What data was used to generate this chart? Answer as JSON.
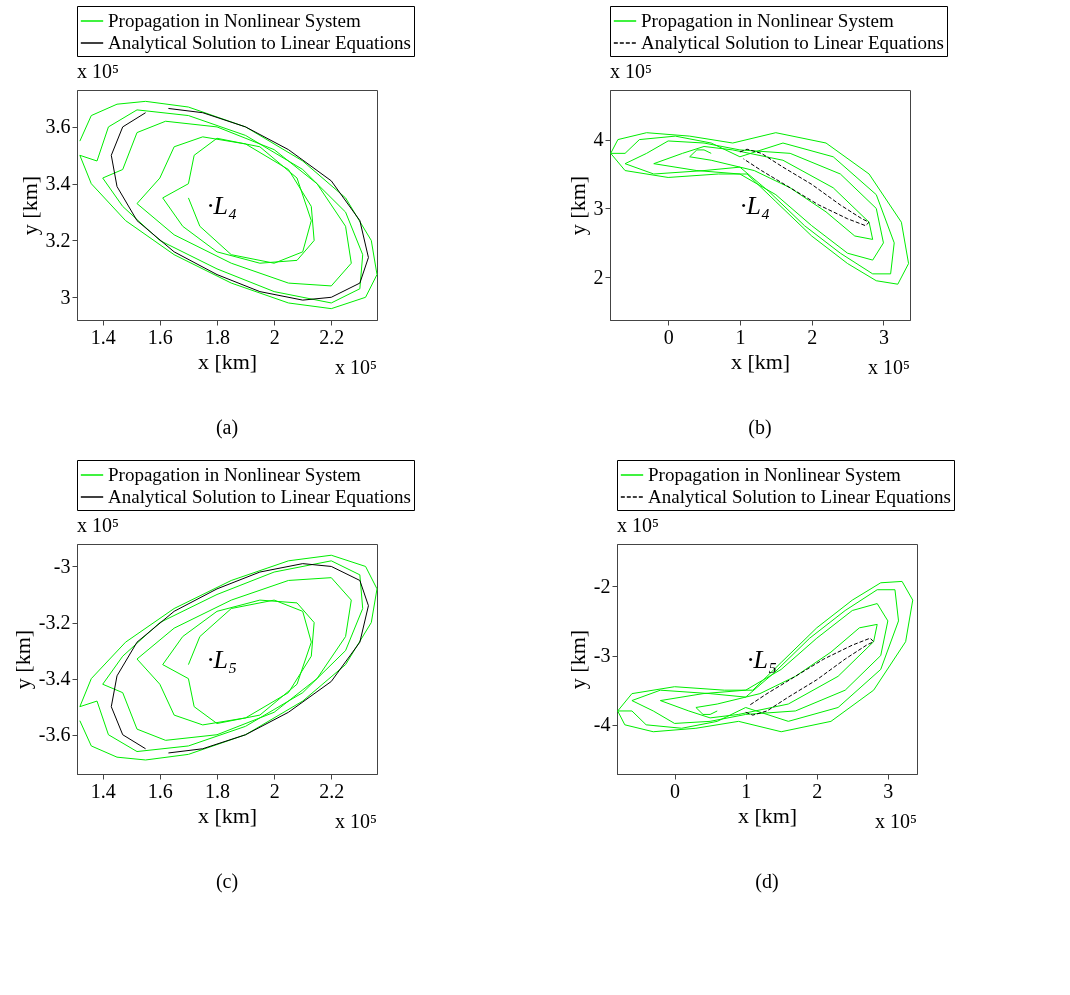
{
  "chart_data": [
    {
      "type": "line",
      "title": "(a)",
      "xlabel": "x [km]",
      "ylabel": "y [km]",
      "annotations": [
        "x 10⁵",
        "x 10⁵",
        "·L₄"
      ],
      "xlim": [
        1.31,
        2.36
      ],
      "ylim": [
        2.92,
        3.73
      ],
      "xticks": [
        1.4,
        1.6,
        1.8,
        2,
        2.2
      ],
      "yticks": [
        3,
        3.2,
        3.4,
        3.6
      ],
      "grid": false,
      "legend": "top",
      "series": [
        {
          "name": "Propagation in Nonlinear System",
          "color": "#00ee00",
          "line_style": "solid",
          "x": [
            1.32,
            1.36,
            1.45,
            1.55,
            1.7,
            1.9,
            2.1,
            2.25,
            2.34,
            2.36,
            2.32,
            2.2,
            2.05,
            1.85,
            1.65,
            1.48,
            1.36,
            1.32,
            1.38,
            1.42,
            1.52,
            1.7,
            1.9,
            2.1,
            2.25,
            2.31,
            2.3,
            2.2,
            2.0,
            1.8,
            1.6,
            1.47,
            1.4,
            1.47,
            1.52,
            1.62,
            1.8,
            2.0,
            2.15,
            2.25,
            2.27,
            2.2,
            2.05,
            1.85,
            1.65,
            1.52,
            1.6,
            1.65,
            1.75,
            1.9,
            2.05,
            2.13,
            2.14,
            2.08,
            1.95,
            1.8,
            1.68,
            1.61,
            1.7,
            1.72,
            1.8,
            1.95,
            2.08,
            2.13,
            2.1,
            2.0,
            1.85,
            1.74,
            1.7
          ],
          "values": [
            3.55,
            3.64,
            3.68,
            3.69,
            3.67,
            3.6,
            3.48,
            3.35,
            3.2,
            3.08,
            3.0,
            2.96,
            2.98,
            3.05,
            3.15,
            3.27,
            3.4,
            3.5,
            3.48,
            3.6,
            3.66,
            3.64,
            3.57,
            3.45,
            3.3,
            3.15,
            3.03,
            2.98,
            3.02,
            3.1,
            3.2,
            3.32,
            3.42,
            3.45,
            3.58,
            3.62,
            3.6,
            3.52,
            3.4,
            3.25,
            3.12,
            3.04,
            3.05,
            3.12,
            3.22,
            3.33,
            3.42,
            3.53,
            3.565,
            3.54,
            3.45,
            3.32,
            3.2,
            3.13,
            3.12,
            3.16,
            3.25,
            3.35,
            3.4,
            3.5,
            3.56,
            3.53,
            3.42,
            3.27,
            3.16,
            3.12,
            3.15,
            3.25,
            3.35
          ]
        },
        {
          "name": "Analytical Solution to Linear Equations",
          "color": "#000000",
          "line_style": "solid",
          "x": [
            1.63,
            1.75,
            1.9,
            2.05,
            2.2,
            2.3,
            2.33,
            2.3,
            2.2,
            2.1,
            1.95,
            1.8,
            1.65,
            1.52,
            1.45,
            1.43,
            1.47,
            1.55
          ],
          "values": [
            3.665,
            3.65,
            3.6,
            3.52,
            3.41,
            3.27,
            3.14,
            3.05,
            3.0,
            2.99,
            3.02,
            3.08,
            3.16,
            3.27,
            3.39,
            3.5,
            3.6,
            3.65
          ]
        }
      ]
    },
    {
      "type": "line",
      "title": "(b)",
      "xlabel": "x [km]",
      "ylabel": "y [km]",
      "annotations": [
        "x 10⁵",
        "x 10⁵",
        "·L₄"
      ],
      "xlim": [
        -0.81,
        3.37
      ],
      "ylim": [
        1.38,
        4.72
      ],
      "xticks": [
        0,
        1,
        2,
        3
      ],
      "yticks": [
        2,
        3,
        4
      ],
      "grid": false,
      "legend": "top",
      "series": [
        {
          "name": "Propagation in Nonlinear System",
          "color": "#00ee00",
          "line_style": "solid",
          "x": [
            -0.8,
            -0.7,
            -0.3,
            0.3,
            0.9,
            1.5,
            2.2,
            2.8,
            3.25,
            3.35,
            3.2,
            2.9,
            2.5,
            2.0,
            1.5,
            1.1,
            0.7,
            0.0,
            -0.6,
            -0.8,
            -0.6,
            -0.4,
            0.1,
            0.6,
            1.0,
            1.6,
            2.3,
            2.9,
            3.15,
            3.1,
            2.85,
            2.4,
            1.9,
            1.4,
            1.0,
            0.5,
            -0.2,
            -0.6,
            -0.3,
            0.0,
            0.5,
            1.0,
            1.7,
            2.4,
            2.9,
            3.0,
            2.85,
            2.5,
            2.0,
            1.5,
            1.0,
            0.4,
            -0.2,
            0.2,
            0.5,
            0.9,
            1.6,
            2.3,
            2.8,
            2.85,
            2.6,
            2.2,
            1.7,
            1.2,
            0.6,
            0.3,
            0.4,
            0.5,
            0.6
          ],
          "values": [
            3.8,
            4.0,
            4.1,
            4.05,
            3.95,
            4.1,
            3.95,
            3.5,
            2.8,
            2.2,
            1.9,
            1.95,
            2.2,
            2.6,
            3.1,
            3.5,
            3.5,
            3.45,
            3.55,
            3.8,
            3.8,
            4.0,
            4.05,
            3.95,
            3.75,
            3.95,
            3.75,
            3.2,
            2.5,
            2.05,
            2.05,
            2.35,
            2.75,
            3.25,
            3.6,
            3.55,
            3.5,
            3.65,
            3.8,
            3.98,
            3.95,
            3.85,
            3.8,
            3.5,
            3.0,
            2.5,
            2.25,
            2.35,
            2.75,
            3.2,
            3.5,
            3.55,
            3.65,
            3.8,
            3.9,
            3.85,
            3.7,
            3.3,
            2.8,
            2.55,
            2.6,
            2.95,
            3.3,
            3.55,
            3.7,
            3.75,
            3.85,
            3.85,
            3.8
          ]
        },
        {
          "name": "Analytical Solution to Linear Equations",
          "color": "#000000",
          "line_style": "dashed",
          "x": [
            1.0,
            1.1,
            1.3,
            1.6,
            2.0,
            2.4,
            2.7,
            2.8,
            2.75,
            2.5,
            2.1,
            1.7,
            1.3,
            1.05
          ],
          "values": [
            3.82,
            3.86,
            3.8,
            3.6,
            3.35,
            3.05,
            2.85,
            2.8,
            2.75,
            2.85,
            3.05,
            3.3,
            3.55,
            3.72
          ]
        }
      ]
    },
    {
      "type": "line",
      "title": "(c)",
      "xlabel": "x [km]",
      "ylabel": "y [km]",
      "annotations": [
        "x 10⁵",
        "x 10⁵",
        "·L₅"
      ],
      "xlim": [
        1.31,
        2.36
      ],
      "ylim": [
        -3.74,
        -2.92
      ],
      "xticks": [
        1.4,
        1.6,
        1.8,
        2,
        2.2
      ],
      "yticks": [
        -3.6,
        -3.4,
        -3.2,
        -3
      ],
      "grid": false,
      "legend": "top",
      "series": [
        {
          "name": "Propagation in Nonlinear System",
          "color": "#00ee00",
          "line_style": "solid",
          "x": [
            1.32,
            1.36,
            1.45,
            1.55,
            1.7,
            1.9,
            2.1,
            2.25,
            2.34,
            2.36,
            2.32,
            2.2,
            2.05,
            1.85,
            1.65,
            1.48,
            1.36,
            1.32,
            1.38,
            1.42,
            1.52,
            1.7,
            1.9,
            2.1,
            2.25,
            2.31,
            2.3,
            2.2,
            2.0,
            1.8,
            1.6,
            1.47,
            1.4,
            1.47,
            1.52,
            1.62,
            1.8,
            2.0,
            2.15,
            2.25,
            2.27,
            2.2,
            2.05,
            1.85,
            1.65,
            1.52,
            1.6,
            1.65,
            1.75,
            1.9,
            2.05,
            2.13,
            2.14,
            2.08,
            1.95,
            1.8,
            1.68,
            1.61,
            1.7,
            1.72,
            1.8,
            1.95,
            2.08,
            2.13,
            2.1,
            2.0,
            1.85,
            1.74,
            1.7
          ],
          "values": [
            -3.55,
            -3.64,
            -3.68,
            -3.69,
            -3.67,
            -3.6,
            -3.48,
            -3.35,
            -3.2,
            -3.08,
            -3.0,
            -2.96,
            -2.98,
            -3.05,
            -3.15,
            -3.27,
            -3.4,
            -3.5,
            -3.48,
            -3.6,
            -3.66,
            -3.64,
            -3.57,
            -3.45,
            -3.3,
            -3.15,
            -3.03,
            -2.98,
            -3.02,
            -3.1,
            -3.2,
            -3.32,
            -3.42,
            -3.45,
            -3.58,
            -3.62,
            -3.6,
            -3.52,
            -3.4,
            -3.25,
            -3.12,
            -3.04,
            -3.05,
            -3.12,
            -3.22,
            -3.33,
            -3.42,
            -3.53,
            -3.565,
            -3.54,
            -3.45,
            -3.32,
            -3.2,
            -3.13,
            -3.12,
            -3.16,
            -3.25,
            -3.35,
            -3.4,
            -3.5,
            -3.56,
            -3.53,
            -3.42,
            -3.27,
            -3.16,
            -3.12,
            -3.15,
            -3.25,
            -3.35
          ]
        },
        {
          "name": "Analytical Solution to Linear Equations",
          "color": "#000000",
          "line_style": "solid",
          "x": [
            1.63,
            1.75,
            1.9,
            2.05,
            2.2,
            2.3,
            2.33,
            2.3,
            2.2,
            2.1,
            1.95,
            1.8,
            1.65,
            1.52,
            1.45,
            1.43,
            1.47,
            1.55
          ],
          "values": [
            -3.665,
            -3.65,
            -3.6,
            -3.52,
            -3.41,
            -3.27,
            -3.14,
            -3.05,
            -3.0,
            -2.99,
            -3.02,
            -3.08,
            -3.16,
            -3.27,
            -3.39,
            -3.5,
            -3.6,
            -3.65
          ]
        }
      ]
    },
    {
      "type": "line",
      "title": "(d)",
      "xlabel": "x [km]",
      "ylabel": "y [km]",
      "annotations": [
        "x 10⁵",
        "x 10⁵",
        "·L₅"
      ],
      "xlim": [
        -0.81,
        3.41
      ],
      "ylim": [
        -4.71,
        -1.39
      ],
      "xticks": [
        0,
        1,
        2,
        3
      ],
      "yticks": [
        -4,
        -3,
        -2
      ],
      "grid": false,
      "legend": "top",
      "series": [
        {
          "name": "Propagation in Nonlinear System",
          "color": "#00ee00",
          "line_style": "solid",
          "x": [
            -0.8,
            -0.7,
            -0.3,
            0.3,
            0.9,
            1.5,
            2.2,
            2.8,
            3.25,
            3.35,
            3.2,
            2.9,
            2.5,
            2.0,
            1.5,
            1.1,
            0.7,
            0.0,
            -0.6,
            -0.8,
            -0.6,
            -0.4,
            0.1,
            0.6,
            1.0,
            1.6,
            2.3,
            2.9,
            3.15,
            3.1,
            2.85,
            2.4,
            1.9,
            1.4,
            1.0,
            0.5,
            -0.2,
            -0.6,
            -0.3,
            0.0,
            0.5,
            1.0,
            1.7,
            2.4,
            2.9,
            3.0,
            2.85,
            2.5,
            2.0,
            1.5,
            1.0,
            0.4,
            -0.2,
            0.2,
            0.5,
            0.9,
            1.6,
            2.3,
            2.8,
            2.85,
            2.6,
            2.2,
            1.7,
            1.2,
            0.6,
            0.3,
            0.4,
            0.5,
            0.6
          ],
          "values": [
            -3.8,
            -4.0,
            -4.1,
            -4.05,
            -3.95,
            -4.1,
            -3.95,
            -3.5,
            -2.8,
            -2.2,
            -1.93,
            -1.95,
            -2.2,
            -2.6,
            -3.1,
            -3.5,
            -3.5,
            -3.45,
            -3.55,
            -3.8,
            -3.8,
            -4.0,
            -4.05,
            -3.95,
            -3.75,
            -3.95,
            -3.75,
            -3.2,
            -2.5,
            -2.05,
            -2.05,
            -2.35,
            -2.75,
            -3.25,
            -3.6,
            -3.55,
            -3.5,
            -3.65,
            -3.8,
            -3.98,
            -3.95,
            -3.85,
            -3.8,
            -3.5,
            -3.0,
            -2.5,
            -2.25,
            -2.35,
            -2.75,
            -3.2,
            -3.5,
            -3.55,
            -3.65,
            -3.8,
            -3.9,
            -3.85,
            -3.7,
            -3.3,
            -2.8,
            -2.55,
            -2.6,
            -2.95,
            -3.3,
            -3.55,
            -3.7,
            -3.75,
            -3.85,
            -3.85,
            -3.8
          ]
        },
        {
          "name": "Analytical Solution to Linear Equations",
          "color": "#000000",
          "line_style": "dashed",
          "x": [
            1.0,
            1.1,
            1.3,
            1.6,
            2.0,
            2.4,
            2.7,
            2.8,
            2.75,
            2.5,
            2.1,
            1.7,
            1.3,
            1.05
          ],
          "values": [
            -3.82,
            -3.86,
            -3.8,
            -3.6,
            -3.35,
            -3.05,
            -2.85,
            -2.8,
            -2.75,
            -2.85,
            -3.05,
            -3.3,
            -3.55,
            -3.72
          ]
        }
      ]
    }
  ]
}
